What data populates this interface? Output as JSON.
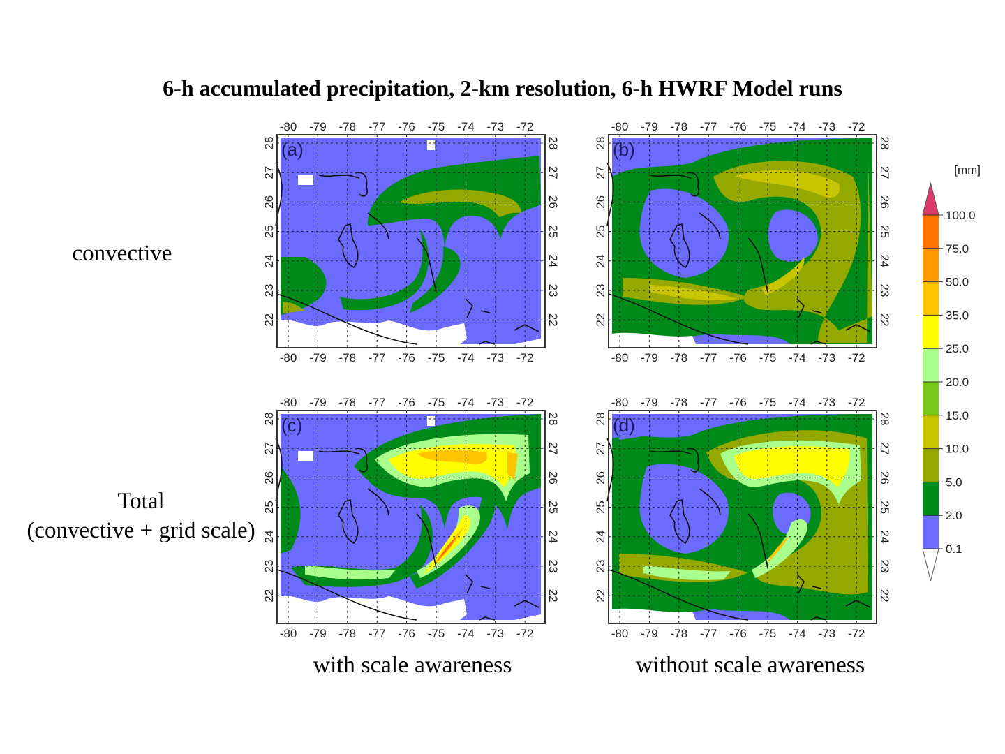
{
  "title": "6-h accumulated precipitation, 2-km resolution, 6-h HWRF Model runs",
  "row_labels": {
    "convective": "convective",
    "total_line1": "Total",
    "total_line2": "(convective + grid scale)"
  },
  "col_labels": {
    "with": "with scale awareness",
    "without": "without scale awareness"
  },
  "panels": [
    {
      "id": "a",
      "label": "(a)"
    },
    {
      "id": "b",
      "label": "(b)"
    },
    {
      "id": "c",
      "label": "(c)"
    },
    {
      "id": "d",
      "label": "(d)"
    }
  ],
  "axes": {
    "lon_ticks": [
      "-80",
      "-79",
      "-78",
      "-77",
      "-76",
      "-75",
      "-74",
      "-73",
      "-72"
    ],
    "lat_ticks": [
      "22",
      "23",
      "24",
      "25",
      "26",
      "27",
      "28"
    ]
  },
  "colorbar": {
    "unit": "[mm]",
    "levels": [
      "0.1",
      "2.0",
      "5.0",
      "10.0",
      "15.0",
      "20.0",
      "25.0",
      "35.0",
      "50.0",
      "75.0",
      "100.0"
    ],
    "colors": [
      "#ffffff",
      "#6b6bff",
      "#008a1a",
      "#95a800",
      "#c9c400",
      "#78c81a",
      "#aaff8c",
      "#ffff00",
      "#ffc400",
      "#ff9a00",
      "#ff7400",
      "#dc3a6c"
    ]
  },
  "chart_data": {
    "type": "heatmap",
    "title": "6-h accumulated precipitation, 2-km resolution, 6-h HWRF Model runs",
    "x_ticks": [
      -80,
      -79,
      -78,
      -77,
      -76,
      -75,
      -74,
      -73,
      -72
    ],
    "y_ticks": [
      22,
      23,
      24,
      25,
      26,
      27,
      28
    ],
    "xlim": [
      -80.4,
      -71.4
    ],
    "ylim": [
      21.2,
      28.3
    ],
    "grid": true,
    "legend": "right colorbar",
    "colorbar_unit": "[mm]",
    "colorbar_levels": [
      0.1,
      2.0,
      5.0,
      10.0,
      15.0,
      20.0,
      25.0,
      35.0,
      50.0,
      75.0,
      100.0
    ]
  }
}
